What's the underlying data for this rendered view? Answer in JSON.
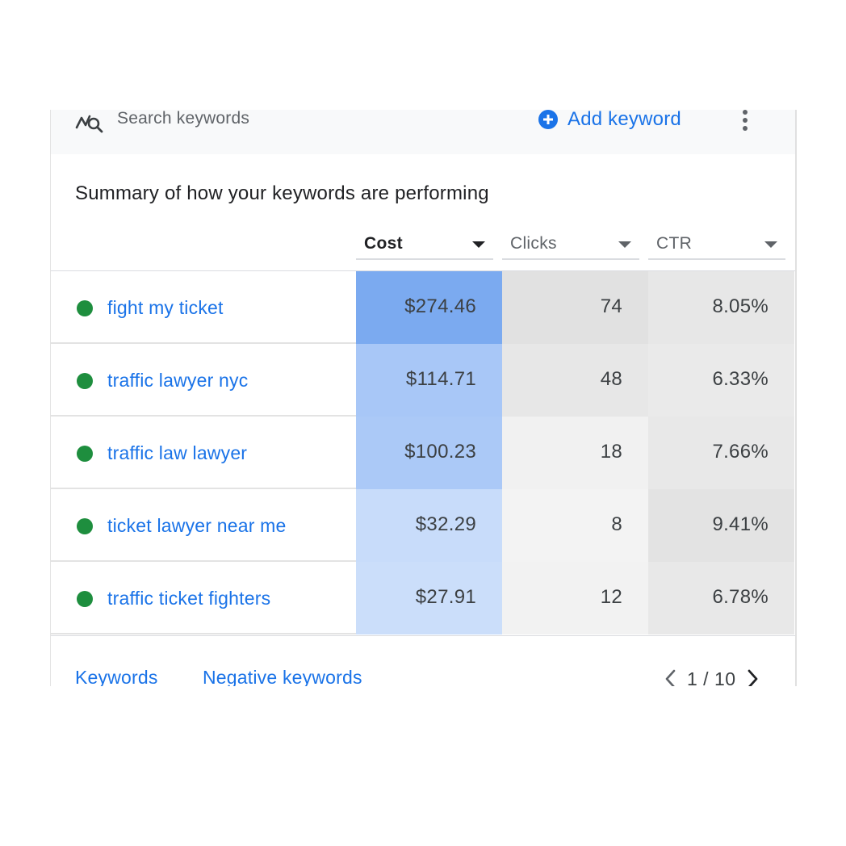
{
  "toolbar": {
    "search_label": "Search keywords",
    "search_icon": "keyword-search-icon",
    "add_label": "Add keyword",
    "add_icon": "add-circle-icon",
    "more_icon": "more-vert-icon"
  },
  "summary": {
    "title": "Summary of how your keywords are performing"
  },
  "columns": [
    {
      "label": "Cost",
      "active": true
    },
    {
      "label": "Clicks",
      "active": false
    },
    {
      "label": "CTR",
      "active": false
    }
  ],
  "rows": [
    {
      "keyword": "fight my ticket",
      "cost": "$274.46",
      "clicks": "74",
      "ctr": "8.05%",
      "cost_bg": "#7baaf0",
      "clicks_bg": "#e1e1e1",
      "ctr_bg": "#e7e7e7"
    },
    {
      "keyword": "traffic lawyer nyc",
      "cost": "$114.71",
      "clicks": "48",
      "ctr": "6.33%",
      "cost_bg": "#a8c7f7",
      "clicks_bg": "#e7e7e7",
      "ctr_bg": "#eaeaea"
    },
    {
      "keyword": "traffic law lawyer",
      "cost": "$100.23",
      "clicks": "18",
      "ctr": "7.66%",
      "cost_bg": "#abc9f7",
      "clicks_bg": "#f1f1f1",
      "ctr_bg": "#e8e8e8"
    },
    {
      "keyword": "ticket lawyer near me",
      "cost": "$32.29",
      "clicks": "8",
      "ctr": "9.41%",
      "cost_bg": "#c8dcfa",
      "clicks_bg": "#f3f3f3",
      "ctr_bg": "#e3e3e3"
    },
    {
      "keyword": "traffic ticket fighters",
      "cost": "$27.91",
      "clicks": "12",
      "ctr": "6.78%",
      "cost_bg": "#cbdefa",
      "clicks_bg": "#f2f2f2",
      "ctr_bg": "#e8e8e8"
    }
  ],
  "footer": {
    "keywords_link": "Keywords",
    "negative_link": "Negative keywords",
    "pager_text": "1 / 10"
  },
  "colors": {
    "accent": "#1a73e8",
    "status_enabled": "#1e8e3e"
  }
}
